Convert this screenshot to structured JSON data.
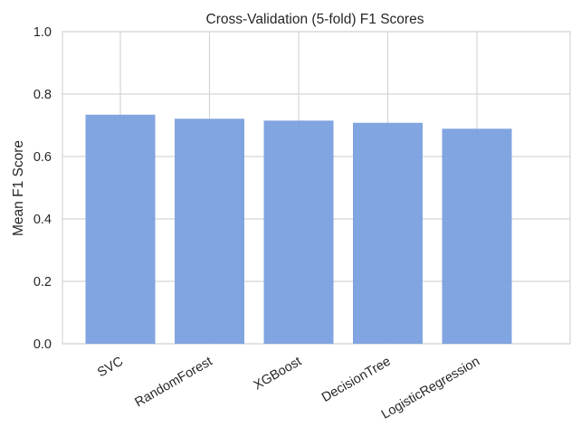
{
  "chart_data": {
    "type": "bar",
    "title": "Cross-Validation (5-fold) F1 Scores",
    "xlabel": "",
    "ylabel": "Mean F1 Score",
    "categories": [
      "SVC",
      "RandomForest",
      "XGBoost",
      "DecisionTree",
      "LogisticRegression"
    ],
    "values": [
      0.734,
      0.721,
      0.715,
      0.708,
      0.689
    ],
    "ylim": [
      0,
      1.0
    ],
    "yticks": [
      "0.0",
      "0.2",
      "0.4",
      "0.6",
      "0.8",
      "1.0"
    ],
    "grid": true,
    "bar_color": "#7aa0de",
    "grid_color": "#d5d5d5"
  }
}
